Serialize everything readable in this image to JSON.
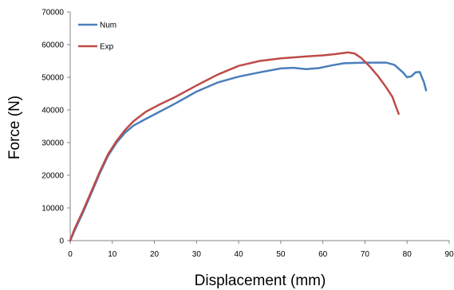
{
  "chart_data": {
    "type": "line",
    "xlabel": "Displacement (mm)",
    "ylabel": "Force (N)",
    "xlim": [
      0,
      90
    ],
    "ylim": [
      0,
      70000
    ],
    "xticks": [
      "0",
      "10",
      "20",
      "30",
      "40",
      "50",
      "60",
      "70",
      "80",
      "90"
    ],
    "yticks": [
      "0",
      "10000",
      "20000",
      "30000",
      "40000",
      "50000",
      "60000",
      "70000"
    ],
    "grid": false,
    "legend_position": "top-left",
    "series": [
      {
        "name": "Num",
        "color": "#4a7ebb",
        "points": [
          [
            0,
            0
          ],
          [
            1,
            3000
          ],
          [
            3,
            8500
          ],
          [
            5,
            14500
          ],
          [
            7,
            20500
          ],
          [
            9,
            26000
          ],
          [
            11,
            30000
          ],
          [
            13,
            33000
          ],
          [
            15,
            35200
          ],
          [
            18,
            37300
          ],
          [
            21,
            39300
          ],
          [
            25,
            42000
          ],
          [
            30,
            45600
          ],
          [
            35,
            48400
          ],
          [
            40,
            50200
          ],
          [
            45,
            51500
          ],
          [
            50,
            52700
          ],
          [
            53,
            52900
          ],
          [
            56,
            52500
          ],
          [
            59,
            52800
          ],
          [
            62,
            53600
          ],
          [
            65,
            54300
          ],
          [
            70,
            54500
          ],
          [
            73,
            54500
          ],
          [
            75,
            54500
          ],
          [
            77,
            53800
          ],
          [
            79,
            51500
          ],
          [
            80,
            50000
          ],
          [
            81,
            50300
          ],
          [
            82,
            51500
          ],
          [
            83,
            51600
          ],
          [
            84,
            48500
          ],
          [
            84.5,
            46000
          ]
        ]
      },
      {
        "name": "Exp",
        "color": "#be4b48",
        "points": [
          [
            0,
            0
          ],
          [
            1,
            3500
          ],
          [
            3,
            9000
          ],
          [
            5,
            15000
          ],
          [
            7,
            21000
          ],
          [
            9,
            26500
          ],
          [
            11,
            30500
          ],
          [
            13,
            33800
          ],
          [
            15,
            36500
          ],
          [
            18,
            39500
          ],
          [
            21,
            41500
          ],
          [
            25,
            44000
          ],
          [
            30,
            47500
          ],
          [
            35,
            50800
          ],
          [
            40,
            53500
          ],
          [
            45,
            55000
          ],
          [
            50,
            55800
          ],
          [
            55,
            56300
          ],
          [
            60,
            56700
          ],
          [
            63,
            57100
          ],
          [
            66,
            57600
          ],
          [
            67.5,
            57300
          ],
          [
            69,
            56000
          ],
          [
            71,
            53500
          ],
          [
            73,
            50500
          ],
          [
            75,
            47000
          ],
          [
            76.5,
            44000
          ],
          [
            77.5,
            40500
          ],
          [
            78,
            38800
          ]
        ]
      }
    ]
  }
}
